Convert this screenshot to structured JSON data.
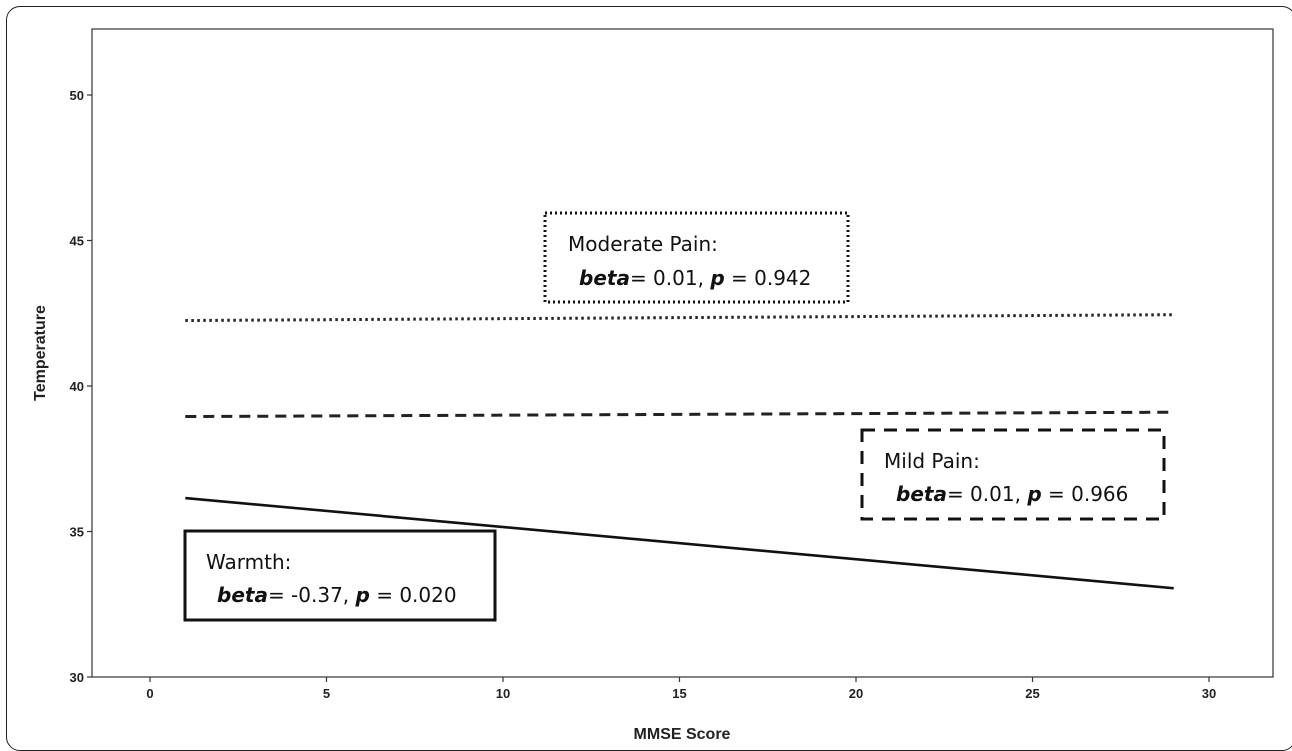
{
  "chart_data": {
    "type": "line",
    "xlabel": "MMSE Score",
    "ylabel": "Temperature",
    "xlim": [
      -3,
      32
    ],
    "ylim": [
      30,
      52
    ],
    "x_ticks": [
      0,
      5,
      10,
      15,
      20,
      25,
      30
    ],
    "y_ticks": [
      30,
      35,
      40,
      45,
      50
    ],
    "grid": false,
    "series": [
      {
        "name": "Moderate Pain",
        "style": "dotted",
        "color": "#222222",
        "x": [
          1,
          29
        ],
        "y": [
          42.25,
          42.45
        ]
      },
      {
        "name": "Mild Pain",
        "style": "dashed",
        "color": "#222222",
        "x": [
          1,
          29
        ],
        "y": [
          38.95,
          39.1
        ]
      },
      {
        "name": "Warmth",
        "style": "solid",
        "color": "#111111",
        "x": [
          1,
          29
        ],
        "y": [
          36.15,
          33.05
        ]
      }
    ],
    "annotations": [
      {
        "id": "moderate",
        "border": "dotted",
        "title": "Moderate Pain:",
        "beta_label": "beta",
        "beta_text": "= 0.01, ",
        "p_label": "p",
        "p_text": " = 0.942"
      },
      {
        "id": "mild",
        "border": "dashed",
        "title": "Mild Pain:",
        "beta_label": "beta",
        "beta_text": "= 0.01, ",
        "p_label": "p",
        "p_text": " = 0.966"
      },
      {
        "id": "warmth",
        "border": "solid",
        "title": "Warmth:",
        "beta_label": "beta",
        "beta_text": "= -0.37, ",
        "p_label": "p",
        "p_text": " = 0.020"
      }
    ]
  }
}
